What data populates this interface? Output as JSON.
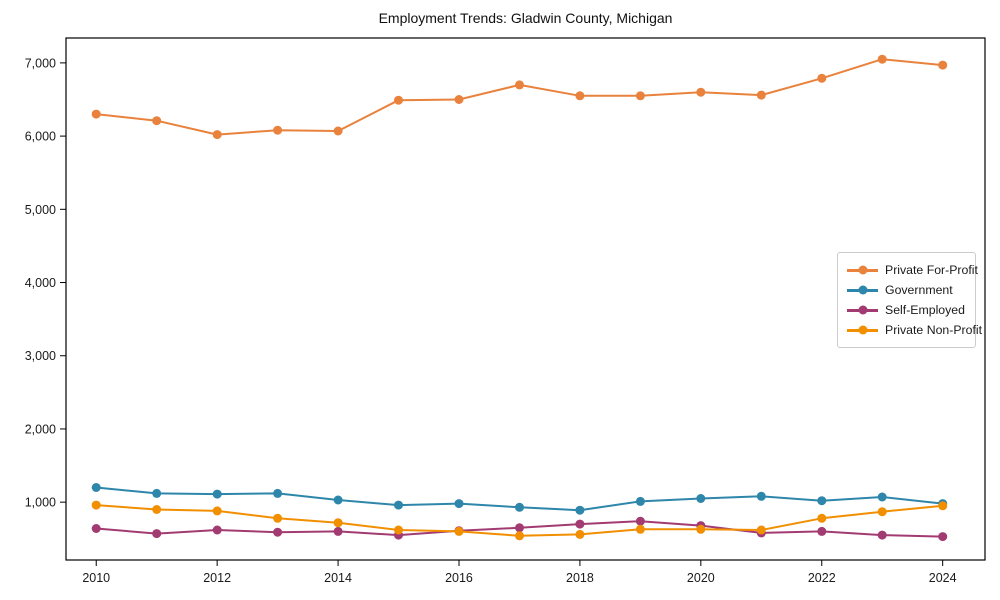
{
  "chart_data": {
    "type": "line",
    "title": "Employment Trends: Gladwin County, Michigan",
    "xlabel": "",
    "ylabel": "",
    "x": [
      2010,
      2011,
      2012,
      2013,
      2014,
      2015,
      2016,
      2017,
      2018,
      2019,
      2020,
      2021,
      2022,
      2023,
      2024
    ],
    "series": [
      {
        "name": "Private For-Profit",
        "color": "#E8823D",
        "values": [
          6300,
          6210,
          6020,
          6080,
          6070,
          6490,
          6500,
          6700,
          6550,
          6550,
          6600,
          6560,
          6790,
          7050,
          6970
        ]
      },
      {
        "name": "Government",
        "color": "#2E86AB",
        "values": [
          1200,
          1120,
          1110,
          1120,
          1030,
          960,
          980,
          930,
          890,
          1010,
          1050,
          1080,
          1020,
          1070,
          980
        ]
      },
      {
        "name": "Self-Employed",
        "color": "#A23B72",
        "values": [
          640,
          570,
          620,
          590,
          600,
          550,
          610,
          650,
          700,
          740,
          680,
          580,
          600,
          550,
          530
        ]
      },
      {
        "name": "Private Non-Profit",
        "color": "#F18F01",
        "values": [
          960,
          900,
          880,
          780,
          720,
          620,
          600,
          540,
          560,
          630,
          630,
          620,
          780,
          870,
          950
        ]
      }
    ],
    "xticks": [
      {
        "value": 2010,
        "label": "2010"
      },
      {
        "value": 2012,
        "label": "2012"
      },
      {
        "value": 2014,
        "label": "2014"
      },
      {
        "value": 2016,
        "label": "2016"
      },
      {
        "value": 2018,
        "label": "2018"
      },
      {
        "value": 2020,
        "label": "2020"
      },
      {
        "value": 2022,
        "label": "2022"
      },
      {
        "value": 2024,
        "label": "2024"
      }
    ],
    "yticks": [
      {
        "value": 1000,
        "label": "1,000"
      },
      {
        "value": 2000,
        "label": "2,000"
      },
      {
        "value": 3000,
        "label": "3,000"
      },
      {
        "value": 4000,
        "label": "4,000"
      },
      {
        "value": 5000,
        "label": "5,000"
      },
      {
        "value": 6000,
        "label": "6,000"
      },
      {
        "value": 7000,
        "label": "7,000"
      }
    ],
    "xlim": [
      2009.5,
      2024.7
    ],
    "ylim": [
      210,
      7340
    ],
    "grid": false,
    "legend_position": "center right inside"
  }
}
